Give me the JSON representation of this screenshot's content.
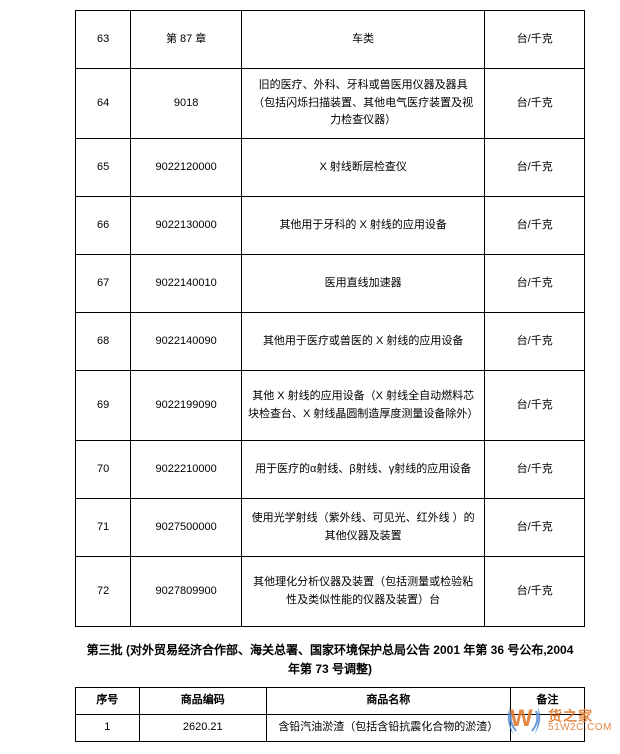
{
  "table1": {
    "col_widths": [
      "50px",
      "100px",
      "220px",
      "90px"
    ],
    "rows": [
      {
        "num": "63",
        "code": "第  87  章",
        "desc": "车类",
        "unit": "台/千克",
        "tall": false
      },
      {
        "num": "64",
        "code": "9018",
        "desc": "旧的医疗、外科、牙科或兽医用仪器及器具（包括闪烁扫描装置、其他电气医疗装置及视力检查仪器）",
        "unit": "台/千克",
        "tall": true
      },
      {
        "num": "65",
        "code": "9022120000",
        "desc": "X  射线断层检查仪",
        "unit": "台/千克",
        "tall": false
      },
      {
        "num": "66",
        "code": "9022130000",
        "desc": "其他用于牙科的  X  射线的应用设备",
        "unit": "台/千克",
        "tall": false
      },
      {
        "num": "67",
        "code": "9022140010",
        "desc": "医用直线加速器",
        "unit": "台/千克",
        "tall": false
      },
      {
        "num": "68",
        "code": "9022140090",
        "desc": "其他用于医疗或兽医的  X  射线的应用设备",
        "unit": "台/千克",
        "tall": false
      },
      {
        "num": "69",
        "code": "9022199090",
        "desc": "其他  X  射线的应用设备（X  射线全自动燃料芯块检查台、X  射线晶圆制造厚度测量设备除外）",
        "unit": "台/千克",
        "tall": true
      },
      {
        "num": "70",
        "code": "9022210000",
        "desc": "用于医疗的α射线、β射线、γ射线的应用设备",
        "unit": "台/千克",
        "tall": false
      },
      {
        "num": "71",
        "code": "9027500000",
        "desc": "使用光学射线（紫外线、可见光、红外线 ）的其他仪器及装置",
        "unit": "台/千克",
        "tall": false
      },
      {
        "num": "72",
        "code": "9027809900",
        "desc": "其他理化分析仪器及装置（包括测量或检验粘性及类似性能的仪器及装置）台",
        "unit": "台/千克",
        "tall": true
      }
    ]
  },
  "section_title": "第三批  (对外贸易经济合作部、海关总署、国家环境保护总局公告  2001  年第  36  号公布,2004  年第  73  号调整)",
  "table2": {
    "headers": [
      "序号",
      "商品编码",
      "商品名称",
      "备注"
    ],
    "rows": [
      {
        "num": "1",
        "code": "2620.21",
        "desc": "含铅汽油淤渣（包括含铅抗震化合物的淤渣）",
        "note": ""
      }
    ]
  },
  "watermark": {
    "zh": "货之家",
    "en": "51W2C.COM"
  }
}
